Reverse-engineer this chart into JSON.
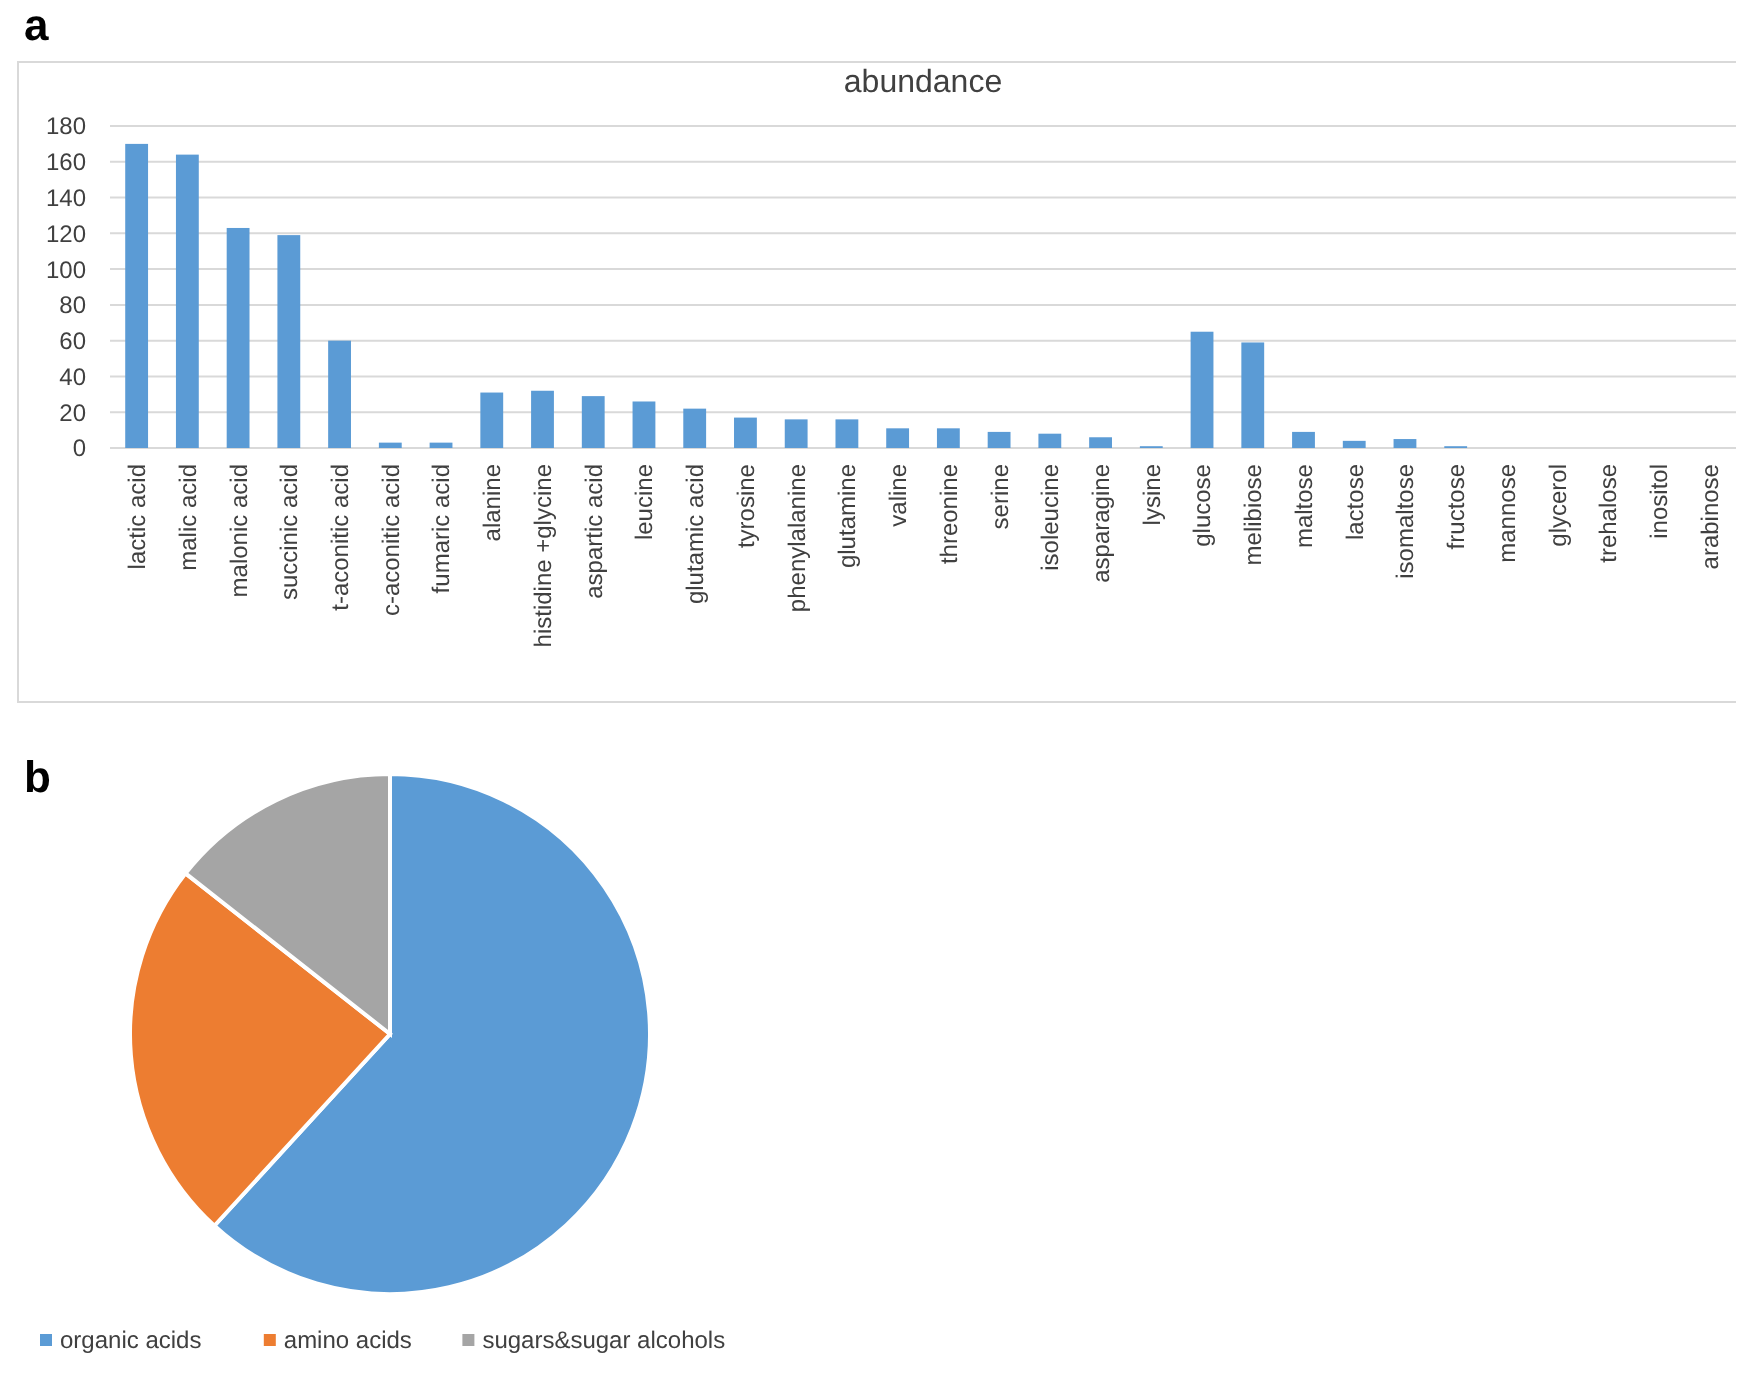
{
  "chart_data": [
    {
      "type": "bar",
      "title": "abundance",
      "annotations": [
        "a"
      ],
      "categories": [
        "lactic acid",
        "malic acid",
        "malonic acid",
        "succinic acid",
        "t-aconitic acid",
        "c-aconitic acid",
        "fumaric acid",
        "alanine",
        "histidine +glycine",
        "aspartic acid",
        "leucine",
        "glutamic acid",
        "tyrosine",
        "phenylalanine",
        "glutamine",
        "valine",
        "threonine",
        "serine",
        "isoleucine",
        "asparagine",
        "lysine",
        "glucose",
        "melibiose",
        "maltose",
        "lactose",
        "isomaltose",
        "fructose",
        "mannose",
        "glycerol",
        "trehalose",
        "inositol",
        "arabinose"
      ],
      "values": [
        170,
        164,
        123,
        119,
        60,
        3,
        3,
        31,
        32,
        29,
        26,
        22,
        17,
        16,
        16,
        11,
        11,
        9,
        8,
        6,
        1,
        65,
        59,
        9,
        4,
        5,
        1,
        0,
        0,
        0,
        0,
        0
      ],
      "color": "#5b9bd5",
      "ylim": [
        0,
        180
      ],
      "yticks": [
        0,
        20,
        40,
        60,
        80,
        100,
        120,
        140,
        160,
        180
      ],
      "grid": "y"
    },
    {
      "type": "pie",
      "annotations": [
        "b"
      ],
      "categories": [
        "organic acids",
        "amino acids",
        "sugars&sugar alcohols"
      ],
      "values": [
        61.8,
        23.8,
        14.4
      ],
      "colors": [
        "#5b9bd5",
        "#ed7d31",
        "#a5a5a5"
      ],
      "legend": "bottom"
    }
  ]
}
